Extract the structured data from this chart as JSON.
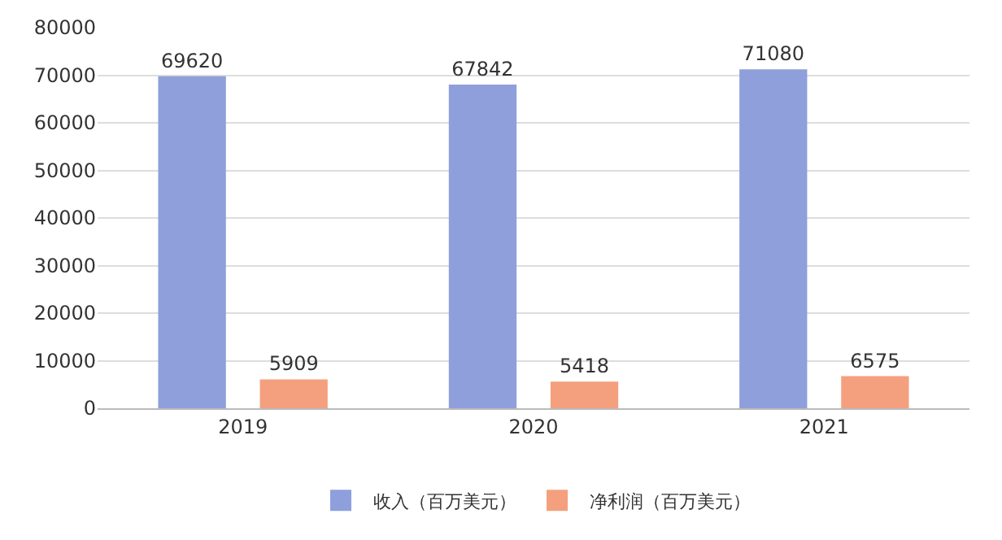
{
  "chart_data": {
    "type": "bar",
    "categories": [
      "2019",
      "2020",
      "2021"
    ],
    "series": [
      {
        "name": "收入（百万美元）",
        "color": "#8e9fdb",
        "values": [
          69620,
          67842,
          71080
        ]
      },
      {
        "name": "净利润（百万美元）",
        "color": "#f4a07f",
        "values": [
          5909,
          5418,
          6575
        ]
      }
    ],
    "ylim": [
      0,
      80000
    ],
    "yticks": [
      0,
      10000,
      20000,
      30000,
      40000,
      50000,
      60000,
      70000,
      80000
    ],
    "grid": "y",
    "legend": "bottom",
    "data_labels": true
  }
}
